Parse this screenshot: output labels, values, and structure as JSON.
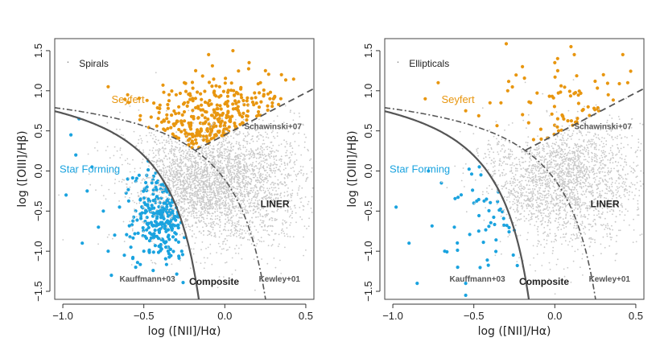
{
  "colors": {
    "background_points": "#c8c8c8",
    "seyfert": "#e8960f",
    "star_forming": "#1aa3df",
    "kauffmann_curve": "#555555",
    "dashed_lines": "#555555"
  },
  "chart_data": [
    {
      "type": "scatter",
      "xlabel": "log ([NII]/Hα)",
      "ylabel": "log ([OIII]/Hβ)",
      "xlim": [
        -1.05,
        0.55
      ],
      "ylim": [
        -1.6,
        1.65
      ],
      "xticks": [
        "−1.0",
        "−0.5",
        "0.0",
        "0.5"
      ],
      "xtick_values": [
        -1.0,
        -0.5,
        0.0,
        0.5
      ],
      "yticks": [
        "−1.5",
        "−1.0",
        "−0.5",
        "0.0",
        "0.5",
        "1.0",
        "1.5"
      ],
      "ytick_values": [
        -1.5,
        -1.0,
        -0.5,
        0.0,
        0.5,
        1.0,
        1.5
      ],
      "grid": false,
      "annotations": {
        "sample": "Spirals",
        "seyfert": "Seyfert",
        "star_forming": "Star Forming",
        "liner": "LINER",
        "composite": "Composite",
        "kauffmann": "Kauffmann+03",
        "kewley": "Kewley+01",
        "schawinski": "Schawinski+07"
      },
      "series": [
        {
          "name": "Seyfert",
          "color": "#e8960f",
          "center": [
            -0.05,
            0.55
          ],
          "spread": [
            0.22,
            0.3
          ],
          "count": 320,
          "points": [
            [
              -0.72,
              1.05
            ],
            [
              -0.6,
              0.95
            ],
            [
              -0.48,
              0.88
            ],
            [
              -0.4,
              0.82
            ],
            [
              -0.35,
              0.78
            ],
            [
              -0.3,
              0.95
            ],
            [
              -0.25,
              1.1
            ],
            [
              -0.18,
              1.25
            ],
            [
              -0.1,
              1.45
            ],
            [
              0.05,
              1.5
            ],
            [
              0.15,
              1.35
            ],
            [
              0.22,
              1.1
            ],
            [
              0.3,
              0.9
            ],
            [
              0.35,
              1.2
            ]
          ]
        },
        {
          "name": "Star Forming",
          "color": "#1aa3df",
          "center": [
            -0.38,
            -0.55
          ],
          "spread": [
            0.09,
            0.28
          ],
          "count": 260,
          "points": [
            [
              -0.98,
              -0.3
            ],
            [
              -0.92,
              0.2
            ],
            [
              -0.88,
              -0.9
            ],
            [
              -0.85,
              -0.25
            ],
            [
              -0.82,
              0.05
            ],
            [
              -0.78,
              -0.7
            ],
            [
              -0.7,
              -1.3
            ],
            [
              -0.68,
              -0.8
            ],
            [
              -0.65,
              -0.45
            ],
            [
              -0.62,
              -1.05
            ],
            [
              -0.58,
              -0.95
            ],
            [
              -0.55,
              -1.2
            ],
            [
              -0.5,
              -1.0
            ],
            [
              -0.52,
              -0.35
            ],
            [
              -0.48,
              -0.2
            ],
            [
              -0.6,
              -0.1
            ],
            [
              -0.75,
              -0.5
            ],
            [
              -0.95,
              0.45
            ],
            [
              -0.9,
              0.65
            ],
            [
              -0.72,
              -1.0
            ]
          ]
        },
        {
          "name": "",
          "color": "#c8c8c8",
          "center": [
            -0.1,
            -0.15
          ],
          "spread": [
            0.28,
            0.38
          ],
          "count": 3200,
          "points": []
        }
      ]
    },
    {
      "type": "scatter",
      "xlabel": "log ([NII]/Hα)",
      "ylabel": "log ([OIII]/Hβ)",
      "xlim": [
        -1.05,
        0.55
      ],
      "ylim": [
        -1.6,
        1.65
      ],
      "xticks": [
        "−1.0",
        "−0.5",
        "0.0",
        "0.5"
      ],
      "xtick_values": [
        -1.0,
        -0.5,
        0.0,
        0.5
      ],
      "yticks": [
        "−1.5",
        "−1.0",
        "−0.5",
        "0.0",
        "0.5",
        "1.0",
        "1.5"
      ],
      "ytick_values": [
        -1.5,
        -1.0,
        -0.5,
        0.0,
        0.5,
        1.0,
        1.5
      ],
      "grid": false,
      "annotations": {
        "sample": "Ellipticals",
        "seyfert": "Seyfert",
        "star_forming": "Star Forming",
        "liner": "LINER",
        "composite": "Composite",
        "kauffmann": "Kauffmann+03",
        "kewley": "Kewley+01",
        "schawinski": "Schawinski+07"
      },
      "series": [
        {
          "name": "Seyfert",
          "color": "#e8960f",
          "center": [
            0.1,
            0.6
          ],
          "spread": [
            0.2,
            0.35
          ],
          "count": 70,
          "points": [
            [
              -0.72,
              1.1
            ],
            [
              -0.8,
              0.9
            ],
            [
              -0.55,
              0.75
            ],
            [
              -0.4,
              0.85
            ],
            [
              -0.2,
              1.3
            ],
            [
              0.0,
              1.35
            ],
            [
              0.1,
              1.55
            ],
            [
              0.12,
              1.45
            ],
            [
              0.3,
              1.2
            ],
            [
              0.42,
              1.45
            ],
            [
              0.45,
              1.1
            ],
            [
              0.33,
              0.95
            ]
          ]
        },
        {
          "name": "Star Forming",
          "color": "#1aa3df",
          "center": [
            -0.35,
            -0.4
          ],
          "spread": [
            0.15,
            0.35
          ],
          "count": 45,
          "points": [
            [
              -0.98,
              -0.45
            ],
            [
              -0.9,
              -0.9
            ],
            [
              -0.85,
              -1.4
            ],
            [
              -0.78,
              0.0
            ],
            [
              -0.7,
              -0.15
            ],
            [
              -0.68,
              -1.0
            ],
            [
              -0.62,
              -0.7
            ],
            [
              -0.6,
              -1.2
            ],
            [
              -0.55,
              -1.4
            ],
            [
              -0.5,
              -0.4
            ],
            [
              -0.55,
              -1.55
            ]
          ]
        },
        {
          "name": "",
          "color": "#c8c8c8",
          "center": [
            0.05,
            -0.1
          ],
          "spread": [
            0.25,
            0.4
          ],
          "count": 2200,
          "points": []
        }
      ]
    }
  ]
}
